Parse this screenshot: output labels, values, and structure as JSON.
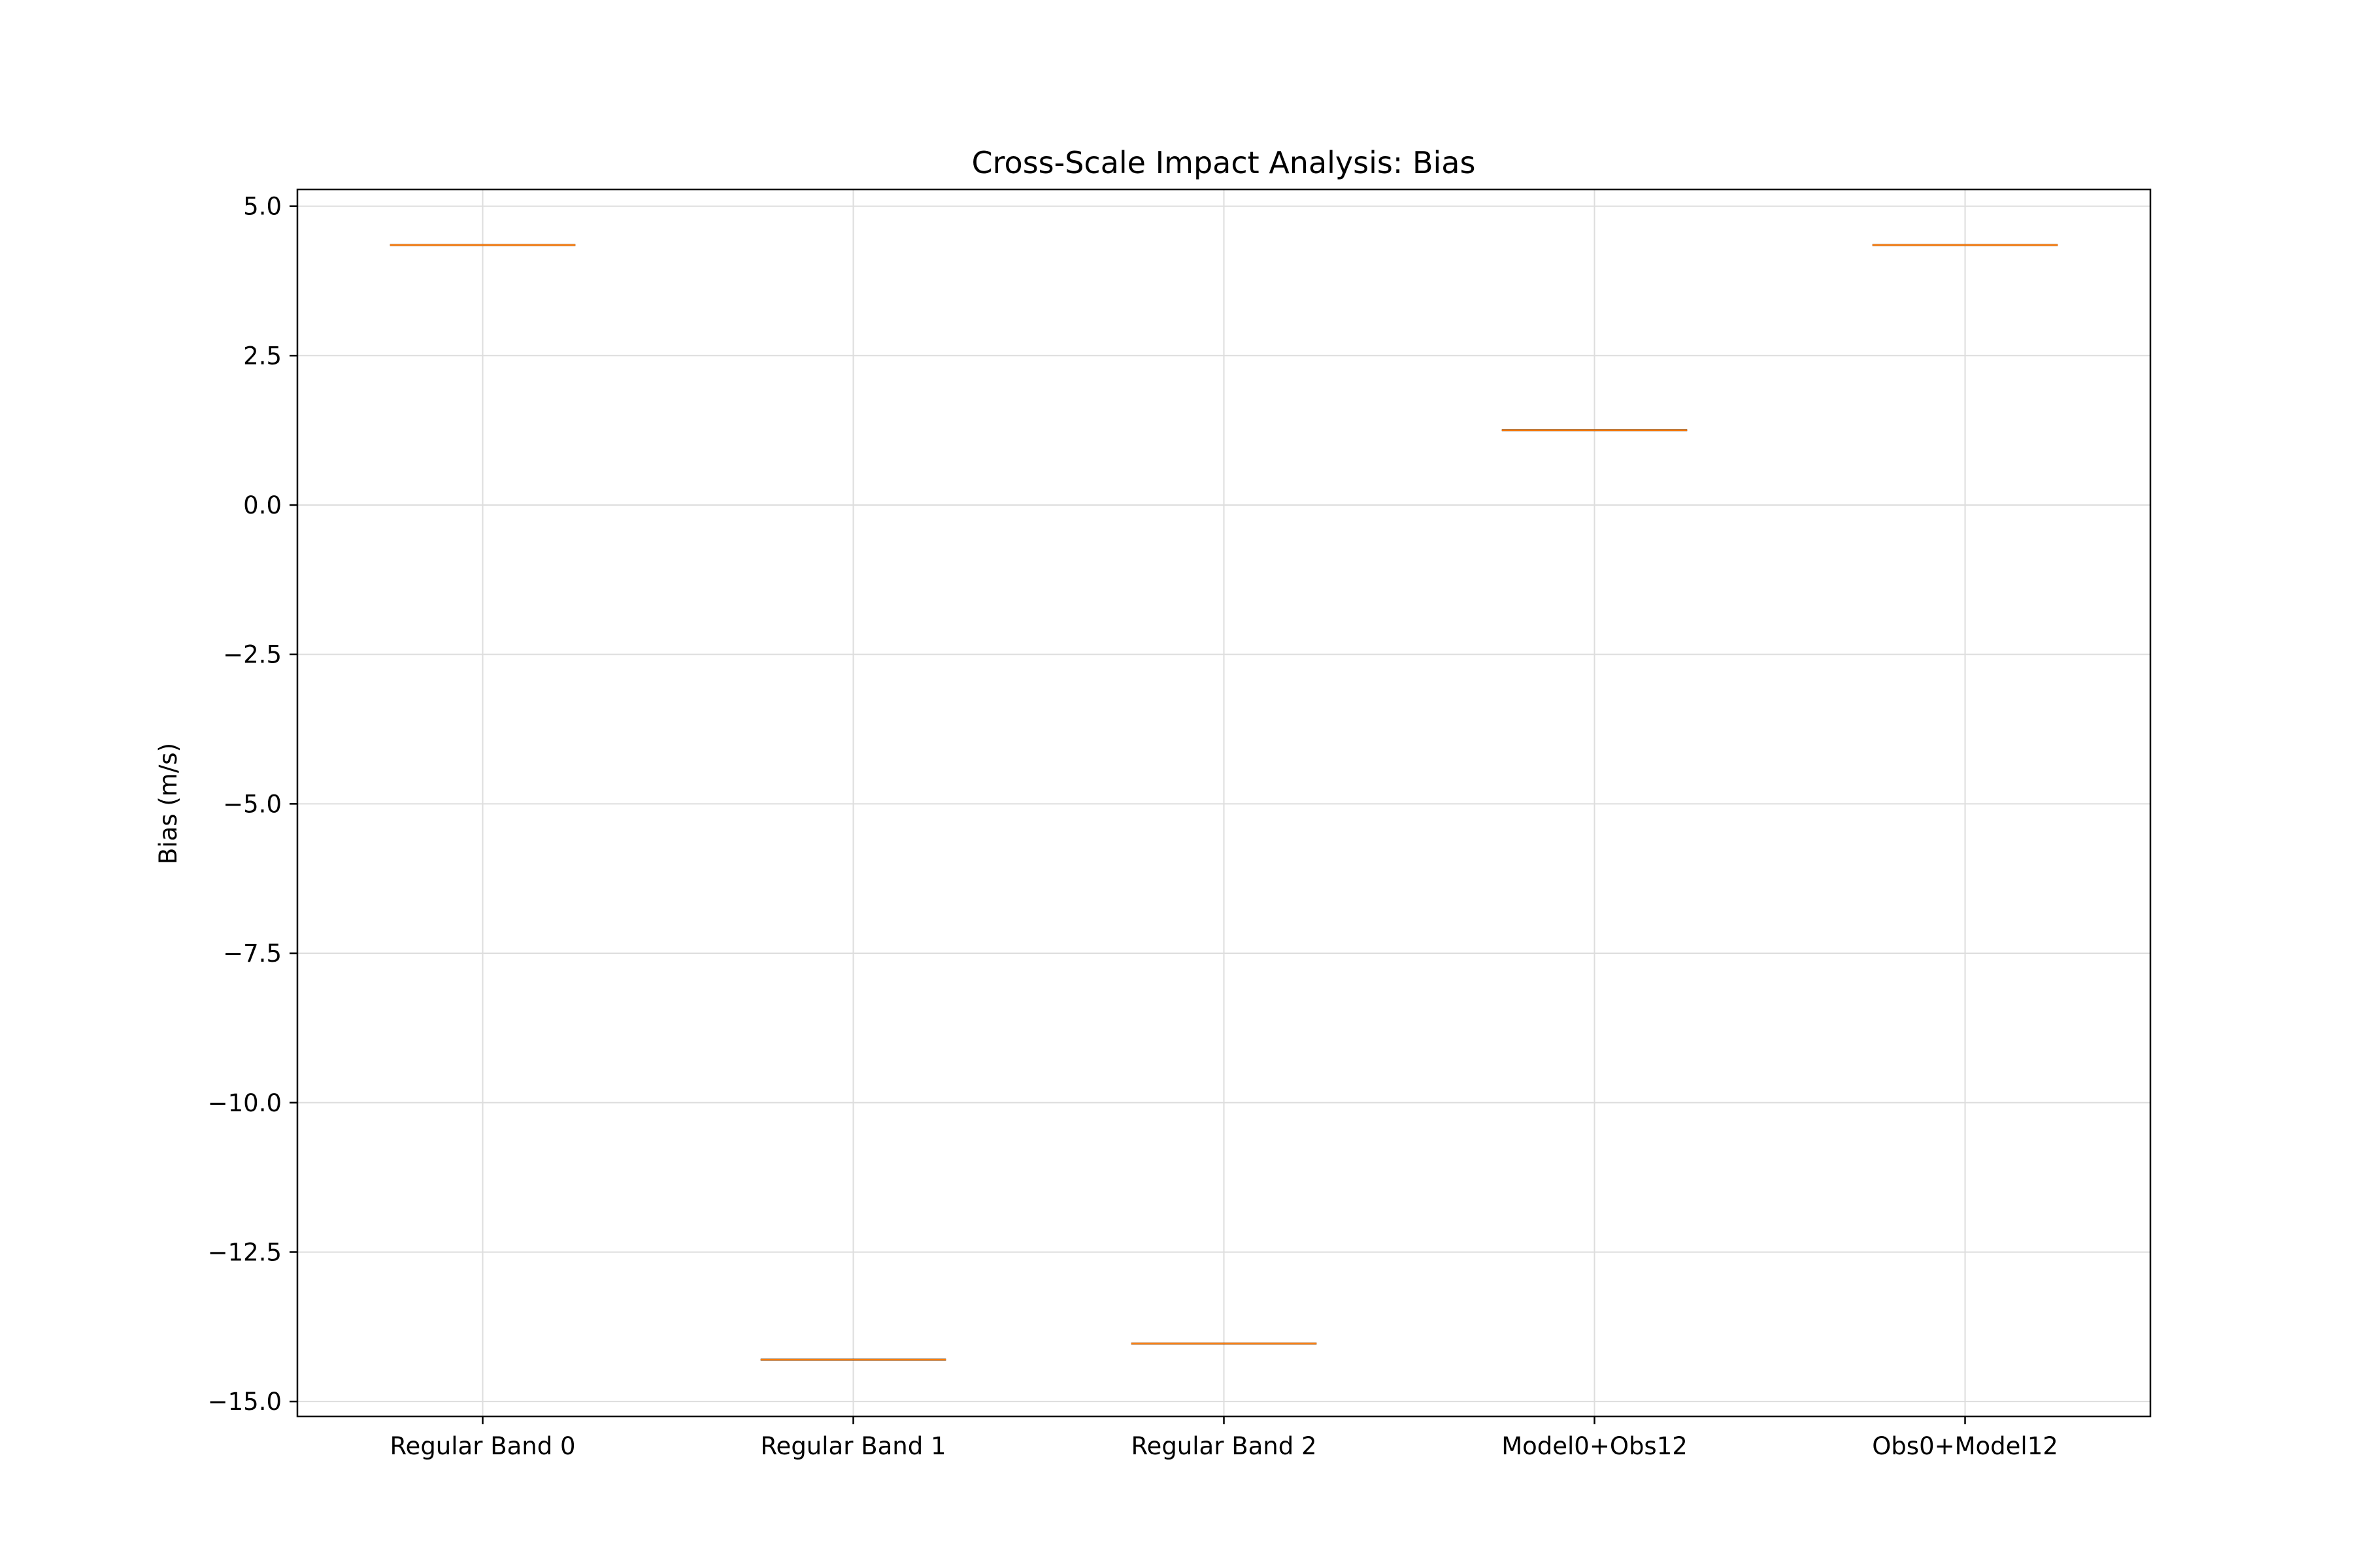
{
  "chart_data": {
    "type": "box",
    "title": "Cross-Scale Impact Analysis: Bias",
    "xlabel": "",
    "ylabel": "Bias (m/s)",
    "categories": [
      "Regular Band 0",
      "Regular Band 1",
      "Regular Band 2",
      "Model0+Obs12",
      "Obs0+Model12"
    ],
    "values": [
      4.35,
      -14.3,
      -14.03,
      1.25,
      4.35
    ],
    "ylim": [
      -15.25,
      5.28
    ],
    "yticks": [
      5.0,
      2.5,
      0.0,
      -2.5,
      -5.0,
      -7.5,
      -10.0,
      -12.5,
      -15.0
    ],
    "ytick_labels": [
      "5.0",
      "2.5",
      "0.0",
      "−2.5",
      "−5.0",
      "−7.5",
      "−10.0",
      "−12.5",
      "−15.0"
    ],
    "grid": true,
    "legend": "none",
    "colors": {
      "median": "#ff7f0e",
      "box_edge": "#000000",
      "grid": "#dddddd",
      "axes": "#000000"
    }
  }
}
